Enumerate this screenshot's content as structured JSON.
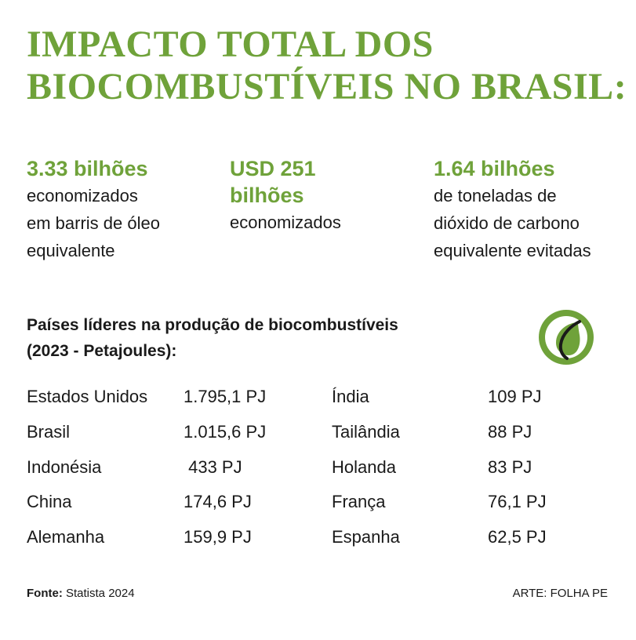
{
  "title_lines": [
    "IMPACTO TOTAL DOS",
    "BIOCOMBUSTÍVEIS NO BRASIL:"
  ],
  "stats": [
    {
      "big": "3.33 bilhões",
      "desc": "economizados\nem barris de óleo\nequivalente"
    },
    {
      "big": "USD 251\nbilhões",
      "desc": "economizados"
    },
    {
      "big": "1.64  bilhões",
      "desc": "de toneladas de\ndióxido de carbono\nequivalente evitadas"
    }
  ],
  "section": {
    "line1": "Países líderes na produção de biocombustíveis",
    "line2": "(2023 - Petajoules):"
  },
  "countries_left": [
    {
      "name": "Estados Unidos",
      "value": "1.795,1 PJ"
    },
    {
      "name": "Brasil",
      "value": "1.015,6 PJ"
    },
    {
      "name": "Indonésia",
      "value": " 433 PJ"
    },
    {
      "name": "China",
      "value": "174,6 PJ"
    },
    {
      "name": "Alemanha",
      "value": "159,9 PJ"
    }
  ],
  "countries_right": [
    {
      "name": "Índia",
      "value": "109 PJ"
    },
    {
      "name": "Tailândia",
      "value": "88 PJ"
    },
    {
      "name": "Holanda",
      "value": "83 PJ"
    },
    {
      "name": "França",
      "value": "76,1 PJ"
    },
    {
      "name": "Espanha",
      "value": "62,5 PJ"
    }
  ],
  "footer": {
    "source_label": "Fonte:",
    "source_text": " Statista 2024",
    "credit": "ARTE: FOLHA PE"
  },
  "colors": {
    "accent": "#6fa23a",
    "text": "#1a1a1a"
  },
  "icons": {
    "logo": "leaf-circle-icon"
  }
}
